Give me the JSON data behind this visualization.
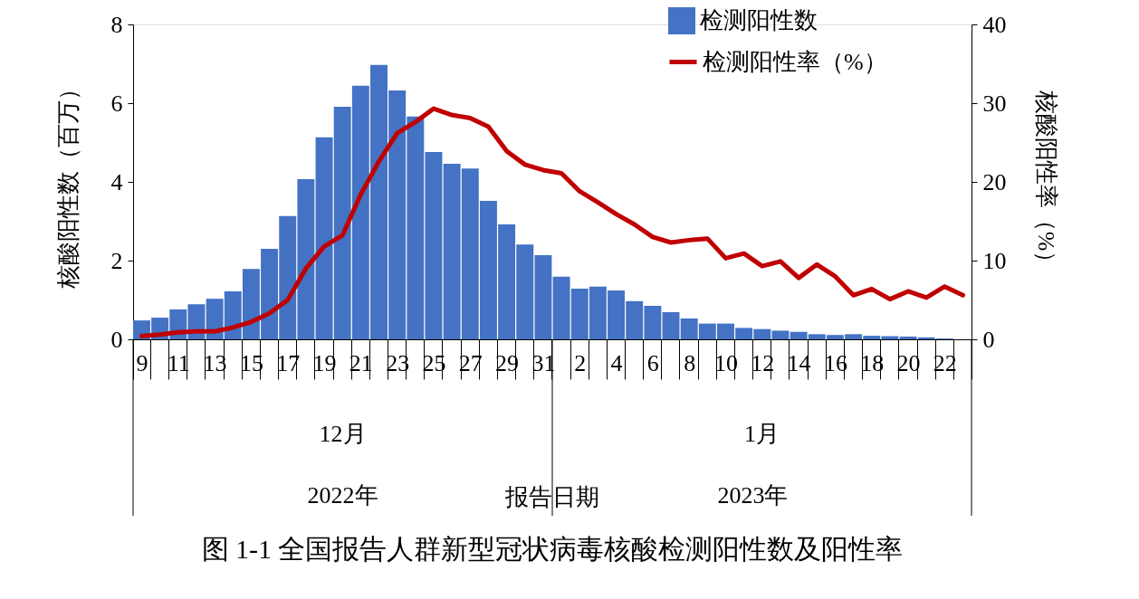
{
  "chart_data": {
    "type": "bar",
    "title": "图 1-1 全国报告人群新型冠状病毒核酸检测阳性数及阳性率",
    "ylabel": "核酸阳性数（百万）",
    "y2label": "核酸阳性率（%）",
    "categories": [
      "9",
      null,
      "11",
      null,
      "13",
      null,
      "15",
      null,
      "17",
      null,
      "19",
      null,
      "21",
      null,
      "23",
      null,
      "25",
      null,
      "27",
      null,
      "29",
      null,
      "31",
      null,
      "2",
      null,
      "4",
      null,
      "6",
      null,
      "8",
      null,
      "10",
      null,
      "12",
      null,
      "14",
      null,
      "16",
      null,
      "18",
      null,
      "20",
      null,
      "22",
      null
    ],
    "series": [
      {
        "name": "检测阳性数",
        "color": "#4472c4",
        "values": [
          0.48,
          0.55,
          0.76,
          0.89,
          1.03,
          1.22,
          1.79,
          2.3,
          3.13,
          4.07,
          5.13,
          5.91,
          6.44,
          6.97,
          6.32,
          5.66,
          4.76,
          4.46,
          4.34,
          3.52,
          2.92,
          2.41,
          2.14,
          1.59,
          1.29,
          1.34,
          1.24,
          0.97,
          0.85,
          0.69,
          0.53,
          0.4,
          0.4,
          0.29,
          0.26,
          0.22,
          0.19,
          0.13,
          0.11,
          0.13,
          0.09,
          0.08,
          0.07,
          0.05,
          0.02,
          0.0
        ]
      },
      {
        "name": "检测阳性率（%）",
        "type": "line",
        "axis": "y2",
        "color": "#c00000",
        "values": [
          0.4,
          0.6,
          0.9,
          1.0,
          1.0,
          1.5,
          2.2,
          3.3,
          5.0,
          9.0,
          11.8,
          13.2,
          18.4,
          22.6,
          26.2,
          27.6,
          29.3,
          28.5,
          28.1,
          27.0,
          23.9,
          22.2,
          21.5,
          21.1,
          18.8,
          17.4,
          15.9,
          14.6,
          13.0,
          12.3,
          12.6,
          12.8,
          10.3,
          10.9,
          9.3,
          9.9,
          7.8,
          9.5,
          8.0,
          5.6,
          6.4,
          5.1,
          6.1,
          5.3,
          6.7,
          5.6
        ]
      }
    ],
    "ylim": [
      0,
      8
    ],
    "yticks": [
      0,
      2,
      4,
      6,
      8
    ],
    "y2lim": [
      0,
      40
    ],
    "y2ticks": [
      0,
      10,
      20,
      30,
      40
    ],
    "legend": "top right",
    "grid": false,
    "annotations": [
      "12月",
      "1月",
      "2022年",
      "2023年",
      "报告日期"
    ]
  }
}
